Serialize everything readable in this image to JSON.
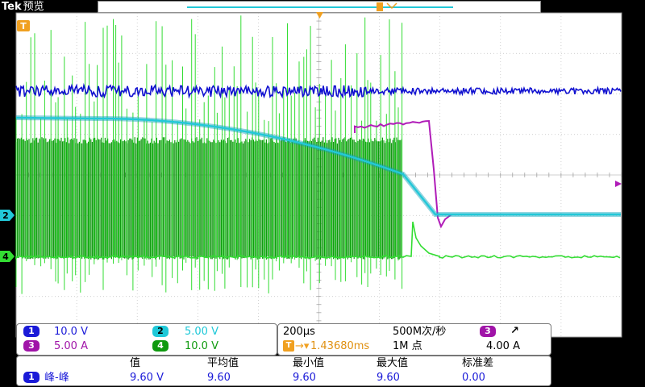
{
  "header": {
    "brand": "Tek",
    "mode": "预览"
  },
  "channels": [
    {
      "num": "1",
      "scale": "10.0 V",
      "color": "#1a1ad8"
    },
    {
      "num": "2",
      "scale": "5.00 V",
      "color": "#1ec8d8"
    },
    {
      "num": "3",
      "scale": "5.00 A",
      "color": "#a014a8"
    },
    {
      "num": "4",
      "scale": "10.0 V",
      "color": "#0f9a0f"
    }
  ],
  "markers": {
    "trigger": "T",
    "ch2": "2",
    "ch4": "4"
  },
  "timebase": {
    "scale": "200µs",
    "sample_rate": "500M次/秒",
    "trigger_pos": "1.43680ms",
    "record": "1M 点",
    "trig_channel": "3",
    "trig_slope": "↗",
    "trig_level": "4.00 A"
  },
  "measurements": {
    "headers": [
      "值",
      "平均值",
      "最小值",
      "最大值",
      "标准差"
    ],
    "row": {
      "channel": "1",
      "name": "峰-峰",
      "values": [
        "9.60 V",
        "9.60",
        "9.60",
        "9.60",
        "0.00"
      ]
    }
  },
  "colors": {
    "grid": "#bfbfbf",
    "ch1": "#1010d0",
    "ch2": "#22c8d8",
    "ch3": "#b01cb8",
    "ch4": "#33dd33",
    "trigger_marker": "#f0a020"
  }
}
